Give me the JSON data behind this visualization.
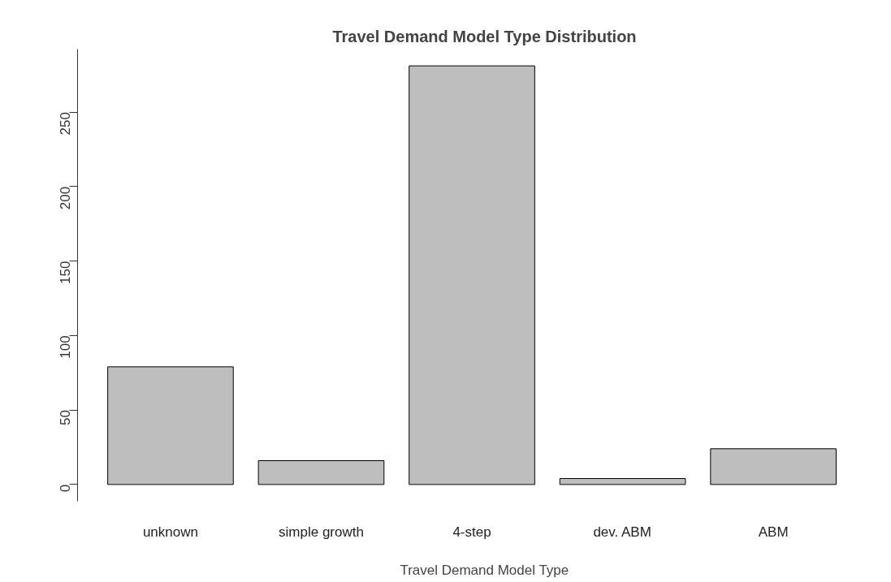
{
  "chart_data": {
    "type": "bar",
    "title": "Travel Demand Model Type Distribution",
    "xlabel": "Travel Demand Model Type",
    "categories": [
      "unknown",
      "simple growth",
      "4-step",
      "dev. ABM",
      "ABM"
    ],
    "values": [
      79,
      16,
      281,
      4,
      24
    ],
    "color": "#bebebe",
    "ylim": [
      -11.24,
      292.24
    ],
    "yticks": [
      0,
      50,
      100,
      150,
      200,
      250
    ],
    "grid": false
  }
}
